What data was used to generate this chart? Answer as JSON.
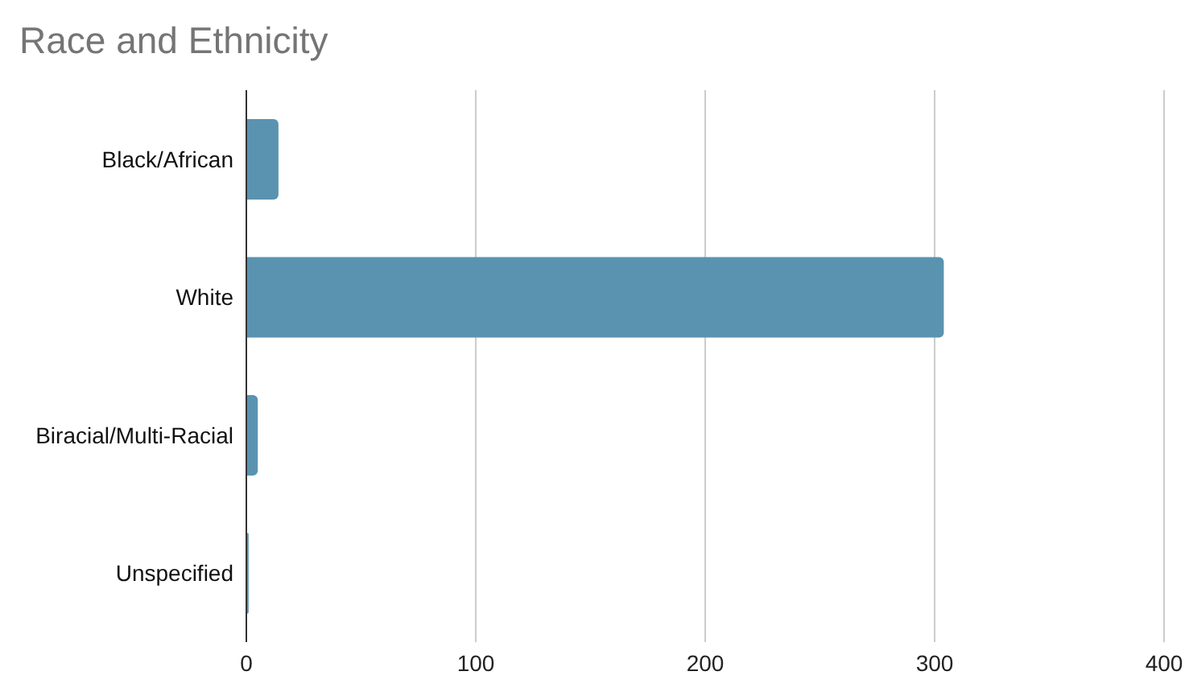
{
  "chart_data": {
    "type": "bar",
    "title": "Race and Ethnicity",
    "orientation": "horizontal",
    "categories": [
      "Black/African",
      "White",
      "Biracial/Multi-Racial",
      "Unspecified"
    ],
    "values": [
      14,
      304,
      5,
      1
    ],
    "color": "#5a93b0",
    "xlim": [
      0,
      400
    ],
    "xticks": [
      0,
      100,
      200,
      300,
      400
    ],
    "grid": "x"
  }
}
